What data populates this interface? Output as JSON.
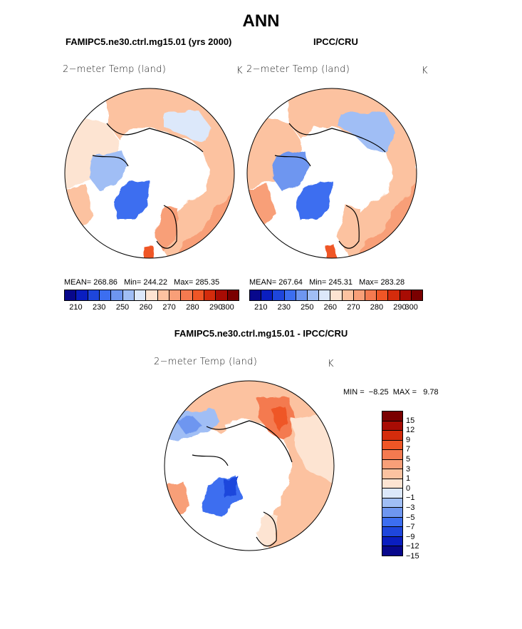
{
  "main_title": "ANN",
  "panels": [
    {
      "case_title": "FAMIPC5.ne30.ctrl.mg15.01 (yrs 2000)",
      "var_label": "2−meter Temp (land)",
      "units": "K",
      "stats": {
        "mean_label": "MEAN=",
        "mean": "268.86",
        "min_label": "Min=",
        "min": "244.22",
        "max_label": "Max=",
        "max": "285.35"
      }
    },
    {
      "case_title": "IPCC/CRU",
      "var_label": "2−meter Temp (land)",
      "units": "K",
      "stats": {
        "mean_label": "MEAN=",
        "mean": "267.64",
        "min_label": "Min=",
        "min": "245.31",
        "max_label": "Max=",
        "max": "283.28"
      }
    },
    {
      "case_title": "FAMIPC5.ne30.ctrl.mg15.01 - IPCC/CRU",
      "var_label": "2−meter Temp (land)",
      "units": "K",
      "stats": {
        "min_label": "MIN =",
        "min": "−8.25",
        "max_label": "MAX =",
        "max": "9.78"
      }
    }
  ],
  "colors": {
    "abs_scale": [
      "#08088c",
      "#0a1ec0",
      "#1e46dc",
      "#3c6ef0",
      "#6e96f0",
      "#a0bef5",
      "#dce8fa",
      "#fde4d2",
      "#fcc2a0",
      "#f89f78",
      "#f47a50",
      "#ef5626",
      "#d42c0c",
      "#a80c04",
      "#7a0000"
    ],
    "diff_scale": [
      "#7a0000",
      "#a80c04",
      "#d42c0c",
      "#ef5626",
      "#f47a50",
      "#f89f78",
      "#fcc2a0",
      "#fde4d2",
      "#dce8fa",
      "#a0bef5",
      "#6e96f0",
      "#3c6ef0",
      "#1e46dc",
      "#0a1ec0",
      "#08088c"
    ],
    "polar_ice": "#ffffff",
    "outline": "#000000"
  },
  "chart_data": [
    {
      "type": "heatmap",
      "projection": "north-polar-stereographic",
      "title": "FAMIPC5.ne30.ctrl.mg15.01 (yrs 2000)",
      "variable": "2-meter Temp (land)",
      "units": "K",
      "mean": 268.86,
      "min": 244.22,
      "max": 285.35,
      "colorbar": {
        "orientation": "horizontal",
        "ticks": [
          210,
          230,
          250,
          260,
          270,
          280,
          290,
          300
        ],
        "tick_labels": [
          "210",
          "230",
          "250",
          "260",
          "270",
          "280",
          "290",
          "300"
        ],
        "num_colors": 15
      }
    },
    {
      "type": "heatmap",
      "projection": "north-polar-stereographic",
      "title": "IPCC/CRU",
      "variable": "2-meter Temp (land)",
      "units": "K",
      "mean": 267.64,
      "min": 245.31,
      "max": 283.28,
      "colorbar": {
        "orientation": "horizontal",
        "ticks": [
          210,
          230,
          250,
          260,
          270,
          280,
          290,
          300
        ],
        "tick_labels": [
          "210",
          "230",
          "250",
          "260",
          "270",
          "280",
          "290",
          "300"
        ],
        "num_colors": 15
      }
    },
    {
      "type": "heatmap",
      "projection": "north-polar-stereographic",
      "title": "FAMIPC5.ne30.ctrl.mg15.01 - IPCC/CRU",
      "variable": "2-meter Temp (land)",
      "units": "K",
      "min": -8.25,
      "max": 9.78,
      "colorbar": {
        "orientation": "vertical",
        "tick_labels": [
          "15",
          "12",
          "9",
          "7",
          "5",
          "3",
          "1",
          "0",
          "−1",
          "−3",
          "−5",
          "−7",
          "−9",
          "−12",
          "−15"
        ],
        "num_colors": 15
      }
    }
  ]
}
